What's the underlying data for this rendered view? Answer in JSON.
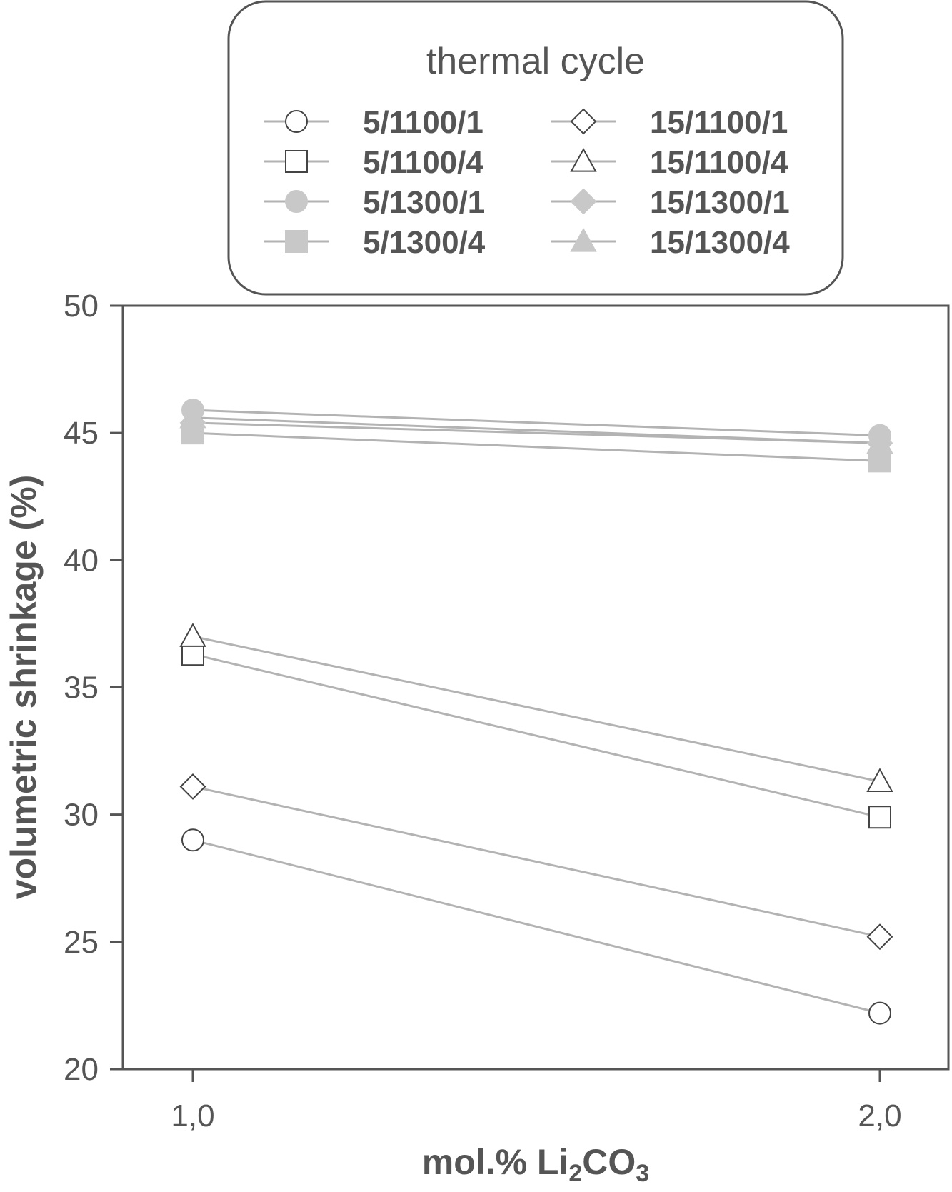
{
  "chart_data": {
    "type": "line",
    "legend": {
      "title": "thermal cycle",
      "placement": "top-center"
    },
    "xlabel": {
      "prefix": "mol.% Li",
      "sub1": "2",
      "mid": "CO",
      "sub2": "3"
    },
    "ylabel": "volumetric shrinkage (%)",
    "x": [
      "1,0",
      "2,0"
    ],
    "ylim": [
      20,
      50
    ],
    "yticks": [
      "20",
      "25",
      "30",
      "35",
      "40",
      "45",
      "50"
    ],
    "grid": false,
    "line_color": "#b3b3b3",
    "series": [
      {
        "name": "5/1100/1",
        "marker": "circle-open",
        "values": [
          29.0,
          22.2
        ]
      },
      {
        "name": "5/1100/4",
        "marker": "square-open",
        "values": [
          36.3,
          29.9
        ]
      },
      {
        "name": "5/1300/1",
        "marker": "circle-filled",
        "values": [
          45.9,
          44.9
        ]
      },
      {
        "name": "5/1300/4",
        "marker": "square-filled",
        "values": [
          45.0,
          43.9
        ]
      },
      {
        "name": "15/1100/1",
        "marker": "diamond-open",
        "values": [
          31.1,
          25.2
        ]
      },
      {
        "name": "15/1100/4",
        "marker": "triangle-open",
        "values": [
          37.0,
          31.3
        ]
      },
      {
        "name": "15/1300/1",
        "marker": "diamond-filled",
        "values": [
          45.4,
          44.6
        ]
      },
      {
        "name": "15/1300/4",
        "marker": "triangle-filled",
        "values": [
          45.6,
          44.6
        ]
      }
    ]
  }
}
